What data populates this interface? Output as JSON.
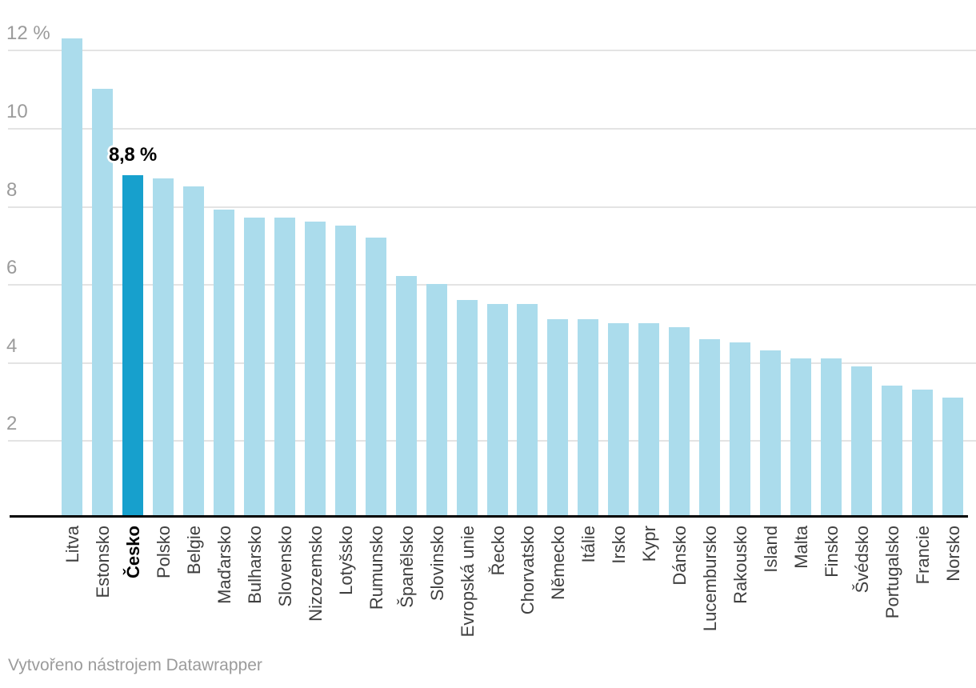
{
  "chart_data": {
    "type": "bar",
    "unit": "%",
    "categories": [
      "Litva",
      "Estonsko",
      "Česko",
      "Polsko",
      "Belgie",
      "Maďarsko",
      "Bulharsko",
      "Slovensko",
      "Nizozemsko",
      "Lotyšsko",
      "Rumunsko",
      "Španělsko",
      "Slovinsko",
      "Evropská unie",
      "Řecko",
      "Chorvatsko",
      "Německo",
      "Itálie",
      "Irsko",
      "Kypr",
      "Dánsko",
      "Lucembursko",
      "Rakousko",
      "Island",
      "Malta",
      "Finsko",
      "Švédsko",
      "Portugalsko",
      "Francie",
      "Norsko"
    ],
    "values": [
      12.3,
      11.0,
      8.8,
      8.7,
      8.5,
      7.9,
      7.7,
      7.7,
      7.6,
      7.5,
      7.2,
      6.2,
      6.0,
      5.6,
      5.5,
      5.5,
      5.1,
      5.1,
      5.0,
      5.0,
      4.9,
      4.6,
      4.5,
      4.3,
      4.1,
      4.1,
      3.9,
      3.4,
      3.3,
      3.1
    ],
    "highlight": {
      "category": "Česko",
      "index": 2,
      "value": 8.8,
      "label": "8,8 %"
    },
    "y_axis": {
      "ticks": [
        {
          "value": 2,
          "label": "2"
        },
        {
          "value": 4,
          "label": "4"
        },
        {
          "value": 6,
          "label": "6"
        },
        {
          "value": 8,
          "label": "8"
        },
        {
          "value": 10,
          "label": "10"
        },
        {
          "value": 12,
          "label": "12 %"
        }
      ],
      "min": 0,
      "max": 12.5,
      "grid": "on"
    },
    "xlabel": "",
    "ylabel": "",
    "legend": "none",
    "colors": {
      "bar": "#abdcec",
      "highlight_bar": "#17a0cd",
      "gridline": "#e4e4e4",
      "axis_line": "#000000",
      "tick_label": "#9b9b9b",
      "category_label": "#404040",
      "highlight_category_label": "#000000",
      "annotation_text": "#000000",
      "footer_text": "#9b9b9b"
    }
  },
  "footer": {
    "credit": "Vytvořeno nástrojem Datawrapper"
  }
}
